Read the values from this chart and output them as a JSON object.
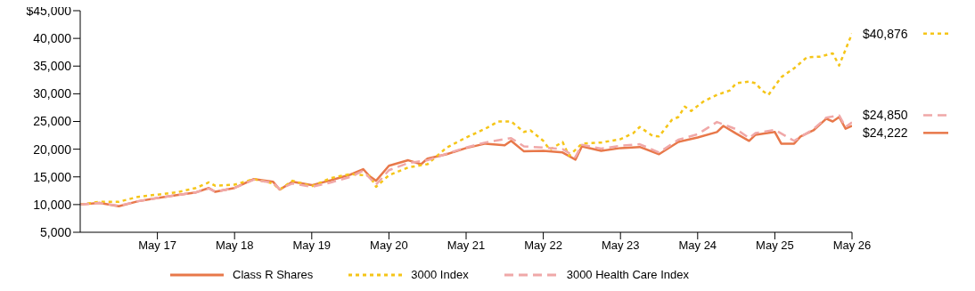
{
  "chart_data": {
    "type": "line",
    "legend": "bottom",
    "grid": false,
    "marker": "none",
    "xlim": [
      "2016-05",
      "2026-05"
    ],
    "xticks": [
      {
        "value": "2017-05",
        "label": "May 17"
      },
      {
        "value": "2018-05",
        "label": "May 18"
      },
      {
        "value": "2019-05",
        "label": "May 19"
      },
      {
        "value": "2020-05",
        "label": "May 20"
      },
      {
        "value": "2021-05",
        "label": "May 21"
      },
      {
        "value": "2022-05",
        "label": "May 22"
      },
      {
        "value": "2023-05",
        "label": "May 23"
      },
      {
        "value": "2024-05",
        "label": "May 24"
      },
      {
        "value": "2025-05",
        "label": "May 25"
      },
      {
        "value": "2026-05",
        "label": "May 26"
      }
    ],
    "ylim": [
      5000,
      45000
    ],
    "yticks": [
      {
        "value": 5000,
        "label": "5,000"
      },
      {
        "value": 10000,
        "label": "10,000"
      },
      {
        "value": 15000,
        "label": "15,000"
      },
      {
        "value": 20000,
        "label": "20,000"
      },
      {
        "value": 25000,
        "label": "25,000"
      },
      {
        "value": 30000,
        "label": "30,000"
      },
      {
        "value": 35000,
        "label": "35,000"
      },
      {
        "value": 40000,
        "label": "40,000"
      },
      {
        "value": 45000,
        "label": "$45,000"
      }
    ],
    "series": [
      {
        "name": "Class R Shares",
        "color": "#e8784a",
        "line_style": "solid",
        "x": [
          "2016-05",
          "2016-08",
          "2016-11",
          "2017-02",
          "2017-05",
          "2017-08",
          "2017-11",
          "2018-01",
          "2018-02",
          "2018-05",
          "2018-08",
          "2018-11",
          "2018-12",
          "2019-02",
          "2019-05",
          "2019-08",
          "2019-11",
          "2020-01",
          "2020-02",
          "2020-03",
          "2020-05",
          "2020-08",
          "2020-10",
          "2020-11",
          "2021-02",
          "2021-05",
          "2021-08",
          "2021-11",
          "2021-12",
          "2022-02",
          "2022-05",
          "2022-08",
          "2022-10",
          "2022-11",
          "2023-02",
          "2023-05",
          "2023-08",
          "2023-11",
          "2024-02",
          "2024-05",
          "2024-08",
          "2024-09",
          "2024-11",
          "2025-01",
          "2025-02",
          "2025-05",
          "2025-06",
          "2025-08",
          "2025-09",
          "2025-11",
          "2026-01",
          "2026-02",
          "2026-03",
          "2026-04",
          "2026-05"
        ],
        "values": [
          10000,
          10300,
          9700,
          10600,
          11200,
          11700,
          12200,
          13000,
          12300,
          13000,
          14600,
          14100,
          12700,
          14100,
          13500,
          14400,
          15400,
          16400,
          15100,
          14300,
          17000,
          18000,
          17300,
          18300,
          19100,
          20200,
          21000,
          20700,
          21500,
          19600,
          19700,
          19400,
          18100,
          20500,
          19700,
          20200,
          20400,
          19100,
          21300,
          22100,
          23100,
          24200,
          22800,
          21500,
          22600,
          23100,
          21000,
          21000,
          22300,
          23400,
          25500,
          25000,
          25800,
          23700,
          24222
        ],
        "value_labels": [
          null,
          null,
          null,
          null,
          null,
          null,
          null,
          null,
          null,
          null,
          null,
          null,
          null,
          null,
          null,
          null,
          null,
          null,
          null,
          null,
          null,
          null,
          null,
          null,
          null,
          null,
          null,
          null,
          null,
          null,
          null,
          null,
          null,
          null,
          null,
          null,
          null,
          null,
          null,
          null,
          null,
          null,
          null,
          null,
          null,
          null,
          null,
          null,
          null,
          null,
          null,
          null,
          null,
          null,
          "$24,222"
        ]
      },
      {
        "name": "3000 Index",
        "color": "#f5c518",
        "line_style": "dotted",
        "x": [
          "2016-05",
          "2016-08",
          "2016-11",
          "2017-02",
          "2017-05",
          "2017-08",
          "2017-11",
          "2018-01",
          "2018-02",
          "2018-05",
          "2018-08",
          "2018-11",
          "2018-12",
          "2019-02",
          "2019-05",
          "2019-08",
          "2019-11",
          "2020-02",
          "2020-03",
          "2020-05",
          "2020-08",
          "2020-11",
          "2021-02",
          "2021-05",
          "2021-08",
          "2021-10",
          "2021-12",
          "2022-02",
          "2022-03",
          "2022-05",
          "2022-06",
          "2022-08",
          "2022-09",
          "2022-11",
          "2023-02",
          "2023-05",
          "2023-07",
          "2023-08",
          "2023-10",
          "2023-11",
          "2024-01",
          "2024-02",
          "2024-03",
          "2024-04",
          "2024-06",
          "2024-08",
          "2024-10",
          "2024-11",
          "2025-01",
          "2025-02",
          "2025-03",
          "2025-04",
          "2025-06",
          "2025-08",
          "2025-10",
          "2025-12",
          "2026-02",
          "2026-03",
          "2026-05"
        ],
        "values": [
          10000,
          10500,
          10500,
          11400,
          11800,
          12200,
          13000,
          14000,
          13400,
          13600,
          14600,
          13800,
          12700,
          14300,
          13300,
          14800,
          15500,
          15200,
          13200,
          15300,
          16700,
          17300,
          20300,
          22100,
          23700,
          25000,
          25000,
          23100,
          23400,
          21500,
          19900,
          21300,
          18800,
          21000,
          21200,
          21800,
          22900,
          24000,
          22400,
          22300,
          25300,
          25800,
          27700,
          26900,
          28700,
          29800,
          30600,
          31900,
          32200,
          31900,
          30600,
          29800,
          33000,
          34600,
          36600,
          36700,
          37300,
          35100,
          40876
        ],
        "value_labels": [
          null,
          null,
          null,
          null,
          null,
          null,
          null,
          null,
          null,
          null,
          null,
          null,
          null,
          null,
          null,
          null,
          null,
          null,
          null,
          null,
          null,
          null,
          null,
          null,
          null,
          null,
          null,
          null,
          null,
          null,
          null,
          null,
          null,
          null,
          null,
          null,
          null,
          null,
          null,
          null,
          null,
          null,
          null,
          null,
          null,
          null,
          null,
          null,
          null,
          null,
          null,
          null,
          null,
          null,
          null,
          null,
          null,
          null,
          "$40,876"
        ]
      },
      {
        "name": "3000 Health Care Index",
        "color": "#f0a8a8",
        "line_style": "dashed",
        "x": [
          "2016-05",
          "2016-08",
          "2016-11",
          "2017-02",
          "2017-05",
          "2017-08",
          "2017-11",
          "2018-01",
          "2018-02",
          "2018-05",
          "2018-08",
          "2018-11",
          "2018-12",
          "2019-02",
          "2019-05",
          "2019-08",
          "2019-11",
          "2020-01",
          "2020-02",
          "2020-03",
          "2020-05",
          "2020-08",
          "2020-11",
          "2021-02",
          "2021-05",
          "2021-08",
          "2021-11",
          "2021-12",
          "2022-02",
          "2022-05",
          "2022-08",
          "2022-10",
          "2022-11",
          "2023-02",
          "2023-05",
          "2023-08",
          "2023-11",
          "2024-02",
          "2024-05",
          "2024-08",
          "2024-11",
          "2025-01",
          "2025-02",
          "2025-05",
          "2025-08",
          "2025-11",
          "2026-01",
          "2026-03",
          "2026-04",
          "2026-05"
        ],
        "values": [
          10000,
          10300,
          9800,
          10600,
          11200,
          11700,
          12200,
          12900,
          12300,
          13000,
          14500,
          13900,
          12800,
          13800,
          13200,
          14000,
          15000,
          16100,
          14800,
          13600,
          16200,
          17500,
          18000,
          19200,
          20300,
          21200,
          21800,
          22000,
          20500,
          20300,
          20000,
          18600,
          20800,
          20100,
          20600,
          20900,
          19400,
          21700,
          22700,
          24900,
          23600,
          22000,
          22900,
          23500,
          21500,
          23600,
          25700,
          26100,
          24000,
          24850
        ],
        "value_labels": [
          null,
          null,
          null,
          null,
          null,
          null,
          null,
          null,
          null,
          null,
          null,
          null,
          null,
          null,
          null,
          null,
          null,
          null,
          null,
          null,
          null,
          null,
          null,
          null,
          null,
          null,
          null,
          null,
          null,
          null,
          null,
          null,
          null,
          null,
          null,
          null,
          null,
          null,
          null,
          null,
          null,
          null,
          null,
          null,
          null,
          null,
          null,
          null,
          null,
          "$24,850"
        ]
      }
    ]
  }
}
